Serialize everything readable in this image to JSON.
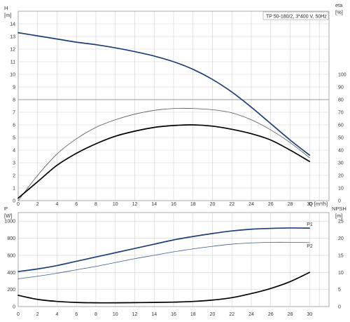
{
  "chart_data": [
    {
      "type": "line",
      "title": "TP 50-180/2, 3*400 V, 50Hz",
      "x_label": "Q [m³/h]",
      "x_ticks": [
        0,
        2,
        4,
        6,
        8,
        10,
        12,
        14,
        16,
        18,
        20,
        22,
        24,
        26,
        28,
        30
      ],
      "xlim": [
        0,
        32
      ],
      "left_axis": {
        "label_line1": "H",
        "label_line2": "[m]",
        "range": [
          0,
          15
        ],
        "ticks": [
          0,
          1,
          2,
          3,
          4,
          5,
          6,
          7,
          8,
          9,
          10,
          11,
          12,
          13,
          14
        ]
      },
      "right_axis": {
        "label_line1": "eta",
        "label_line2": "[%]",
        "range": [
          0,
          150
        ],
        "ticks": [
          0,
          10,
          20,
          30,
          40,
          50,
          60,
          70,
          80,
          90,
          100
        ]
      },
      "grid": true,
      "series": [
        {
          "axis": "left",
          "color": "#1f3f7a",
          "width": 1.7,
          "x": [
            0,
            2,
            4,
            6,
            8,
            10,
            12,
            14,
            16,
            18,
            20,
            22,
            24,
            26,
            28,
            30
          ],
          "y": [
            13.3,
            13.05,
            12.8,
            12.55,
            12.35,
            12.1,
            11.8,
            11.45,
            11.0,
            10.4,
            9.6,
            8.6,
            7.4,
            6.1,
            4.8,
            3.6
          ]
        },
        {
          "axis": "left",
          "color": "#555555",
          "width": 0.8,
          "x": [
            0,
            2,
            4,
            6,
            8,
            10,
            12,
            14,
            16,
            18,
            20,
            22,
            24,
            26,
            28,
            30
          ],
          "y": [
            0,
            2.0,
            3.7,
            4.9,
            5.8,
            6.4,
            6.85,
            7.15,
            7.3,
            7.3,
            7.2,
            6.95,
            6.4,
            5.6,
            4.6,
            3.4
          ]
        },
        {
          "axis": "left",
          "color": "#000000",
          "width": 1.7,
          "x": [
            0,
            2,
            4,
            6,
            8,
            10,
            12,
            14,
            16,
            18,
            20,
            22,
            24,
            26,
            28,
            30
          ],
          "y": [
            0.2,
            1.5,
            2.8,
            3.75,
            4.5,
            5.1,
            5.5,
            5.8,
            5.95,
            6.0,
            5.9,
            5.65,
            5.3,
            4.8,
            4.0,
            3.1
          ]
        }
      ]
    },
    {
      "type": "line",
      "x_ticks": [
        0,
        2,
        4,
        6,
        8,
        10,
        12,
        14,
        16,
        18,
        20,
        22,
        24,
        26,
        28,
        30
      ],
      "xlim": [
        0,
        32
      ],
      "left_axis": {
        "label_line1": "P",
        "label_line2": "[W]",
        "range": [
          0,
          1100
        ],
        "ticks": [
          0,
          200,
          400,
          600,
          800,
          1000
        ]
      },
      "right_axis": {
        "label_line1": "NPSH",
        "label_line2": "[m]",
        "range": [
          0,
          27.5
        ],
        "ticks": [
          0,
          5,
          10,
          15,
          20,
          25
        ]
      },
      "grid": true,
      "series": [
        {
          "name": "P1",
          "axis": "left",
          "color": "#1f3f7a",
          "width": 1.7,
          "x": [
            0,
            2,
            4,
            6,
            8,
            10,
            12,
            14,
            16,
            18,
            20,
            22,
            24,
            26,
            28,
            30
          ],
          "y": [
            410,
            440,
            480,
            530,
            580,
            630,
            680,
            730,
            780,
            820,
            855,
            885,
            905,
            915,
            920,
            918
          ]
        },
        {
          "name": "P2",
          "axis": "left",
          "color": "#3a5a8c",
          "width": 0.8,
          "x": [
            0,
            2,
            4,
            6,
            8,
            10,
            12,
            14,
            16,
            18,
            20,
            22,
            24,
            26,
            28,
            30
          ],
          "y": [
            325,
            355,
            390,
            430,
            470,
            515,
            560,
            600,
            640,
            675,
            705,
            730,
            745,
            752,
            752,
            748
          ]
        },
        {
          "axis": "right",
          "color": "#000000",
          "width": 1.7,
          "x": [
            0,
            2,
            4,
            6,
            8,
            10,
            12,
            14,
            16,
            18,
            20,
            22,
            24,
            26,
            28,
            30
          ],
          "y": [
            3.3,
            2.1,
            1.5,
            1.2,
            1.1,
            1.1,
            1.15,
            1.2,
            1.3,
            1.5,
            1.9,
            2.6,
            3.8,
            5.3,
            7.3,
            10.0
          ]
        }
      ]
    }
  ]
}
